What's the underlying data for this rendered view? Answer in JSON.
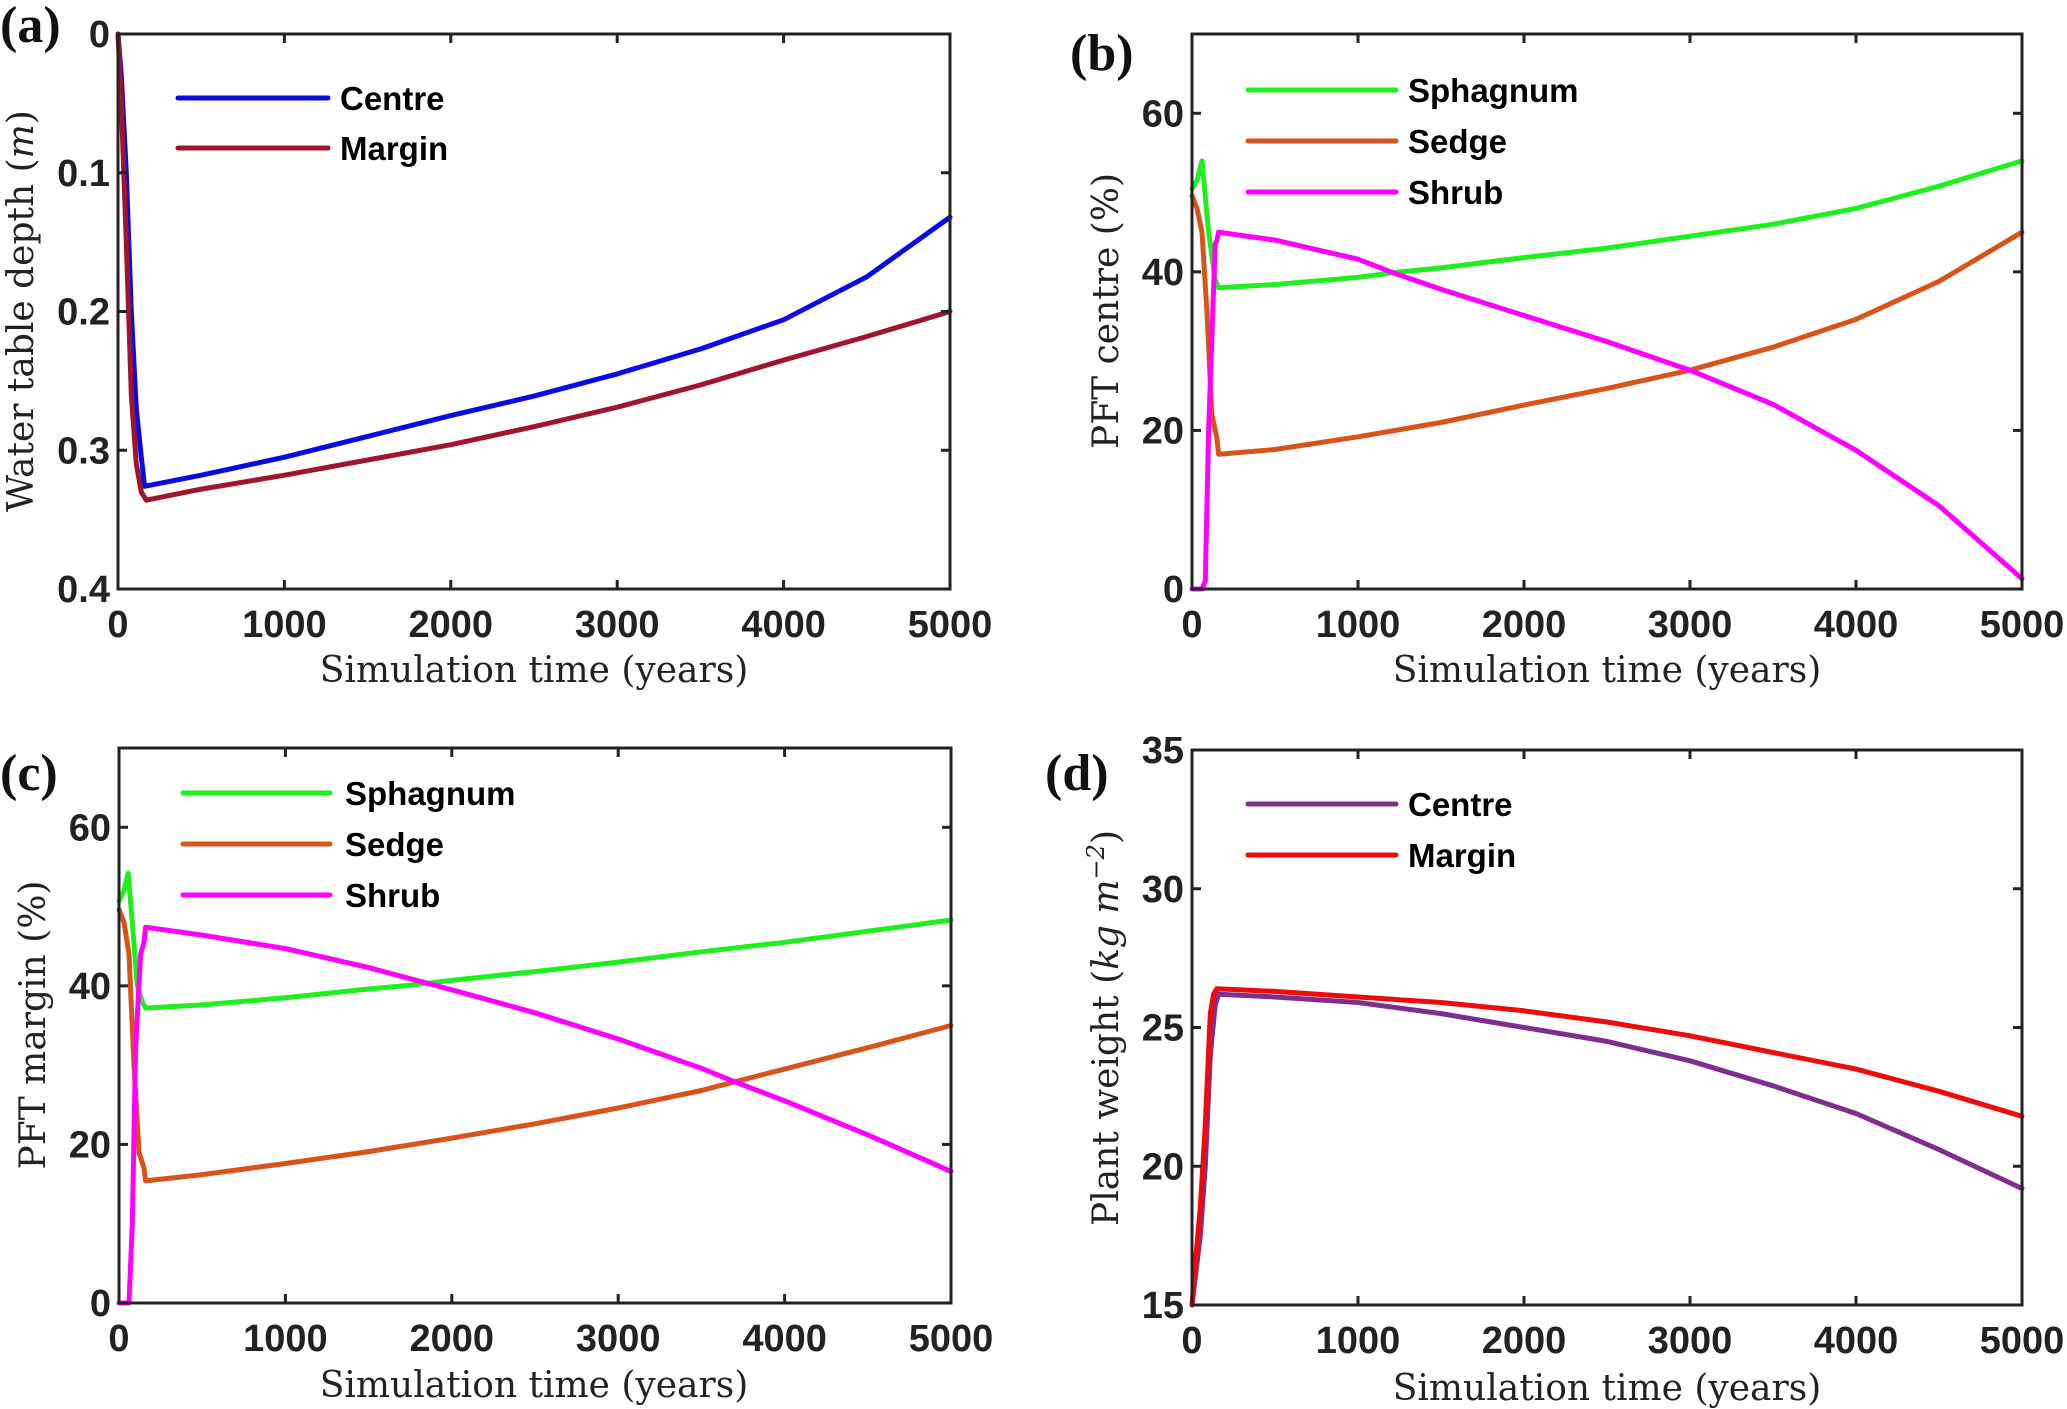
{
  "chart_data": [
    {
      "id": "a",
      "type": "line",
      "panel_label": "(a)",
      "title": "",
      "xlabel": "Simulation time (years)",
      "ylabel": "Water table depth (m)",
      "xlim": [
        0,
        5000
      ],
      "ylim": [
        0,
        0.4
      ],
      "y_reversed": true,
      "xticks": [
        0,
        1000,
        2000,
        3000,
        4000,
        5000
      ],
      "yticks": [
        0,
        0.1,
        0.2,
        0.3,
        0.4
      ],
      "xtick_labels": [
        "0",
        "1000",
        "2000",
        "3000",
        "4000",
        "5000"
      ],
      "ytick_labels": [
        "0",
        "0.1",
        "0.2",
        "0.3",
        "0.4"
      ],
      "legend_position": "top-left",
      "series": [
        {
          "name": "Centre",
          "color": "#0a0ae6",
          "x": [
            0,
            20,
            50,
            80,
            110,
            140,
            160,
            500,
            1000,
            1500,
            2000,
            2500,
            3000,
            3500,
            4000,
            4500,
            5000
          ],
          "y": [
            0,
            0.03,
            0.1,
            0.2,
            0.27,
            0.305,
            0.326,
            0.318,
            0.305,
            0.29,
            0.275,
            0.261,
            0.245,
            0.227,
            0.206,
            0.175,
            0.132
          ]
        },
        {
          "name": "Margin",
          "color": "#a0142d",
          "x": [
            0,
            20,
            50,
            80,
            110,
            140,
            170,
            500,
            1000,
            1500,
            2000,
            2500,
            3000,
            3500,
            4000,
            4500,
            5000
          ],
          "y": [
            0,
            0.05,
            0.15,
            0.26,
            0.31,
            0.33,
            0.336,
            0.328,
            0.318,
            0.307,
            0.296,
            0.283,
            0.269,
            0.253,
            0.235,
            0.218,
            0.2
          ]
        }
      ]
    },
    {
      "id": "b",
      "type": "line",
      "panel_label": "(b)",
      "title": "",
      "xlabel": "Simulation time (years)",
      "ylabel": "PFT centre (%)",
      "xlim": [
        0,
        5000
      ],
      "ylim": [
        0,
        70
      ],
      "y_reversed": false,
      "xticks": [
        0,
        1000,
        2000,
        3000,
        4000,
        5000
      ],
      "yticks": [
        0,
        20,
        40,
        60
      ],
      "xtick_labels": [
        "0",
        "1000",
        "2000",
        "3000",
        "4000",
        "5000"
      ],
      "ytick_labels": [
        "0",
        "20",
        "40",
        "60"
      ],
      "legend_position": "top-left",
      "series": [
        {
          "name": "Sphagnum",
          "color": "#1ef01e",
          "x": [
            0,
            30,
            60,
            100,
            140,
            160,
            500,
            1000,
            1210,
            1500,
            2000,
            2500,
            3000,
            3500,
            4000,
            4500,
            5000
          ],
          "y": [
            50.5,
            51.5,
            54.0,
            45.0,
            39.0,
            38.0,
            38.4,
            39.3,
            39.9,
            40.5,
            41.8,
            43.0,
            44.5,
            46.0,
            48.0,
            50.8,
            54.0
          ]
        },
        {
          "name": "Sedge",
          "color": "#d95319",
          "x": [
            0,
            30,
            60,
            90,
            120,
            150,
            160,
            500,
            1000,
            1500,
            2000,
            2500,
            3000,
            3500,
            4000,
            4500,
            5000
          ],
          "y": [
            49.6,
            48.0,
            45.0,
            35.0,
            22.0,
            19.0,
            17.0,
            17.6,
            19.2,
            21.0,
            23.2,
            25.3,
            27.6,
            30.5,
            34.0,
            38.8,
            45.0
          ]
        },
        {
          "name": "Shrub",
          "color": "#ff00ff",
          "x": [
            0,
            60,
            80,
            100,
            140,
            150,
            160,
            500,
            1000,
            1210,
            1500,
            2000,
            2500,
            3000,
            3500,
            4000,
            4500,
            5000
          ],
          "y": [
            0,
            0,
            1.0,
            20.0,
            43.5,
            44.0,
            45.0,
            44.0,
            41.6,
            39.9,
            37.8,
            34.5,
            31.2,
            27.6,
            23.3,
            17.5,
            10.5,
            1.3
          ]
        }
      ]
    },
    {
      "id": "c",
      "type": "line",
      "panel_label": "(c)",
      "title": "",
      "xlabel": "Simulation time (years)",
      "ylabel": "PFT margin (%)",
      "xlim": [
        0,
        5000
      ],
      "ylim": [
        0,
        70
      ],
      "y_reversed": false,
      "xticks": [
        0,
        1000,
        2000,
        3000,
        4000,
        5000
      ],
      "yticks": [
        0,
        20,
        40,
        60
      ],
      "xtick_labels": [
        "0",
        "1000",
        "2000",
        "3000",
        "4000",
        "5000"
      ],
      "ytick_labels": [
        "0",
        "20",
        "40",
        "60"
      ],
      "legend_position": "top-left",
      "series": [
        {
          "name": "Sphagnum",
          "color": "#1ef01e",
          "x": [
            0,
            30,
            55,
            80,
            110,
            140,
            160,
            500,
            1000,
            1500,
            1750,
            2000,
            2500,
            3000,
            3500,
            4000,
            4500,
            5000
          ],
          "y": [
            50.7,
            52.0,
            54.2,
            48.0,
            40.0,
            38.0,
            37.2,
            37.6,
            38.5,
            39.6,
            40.1,
            40.7,
            41.8,
            43.0,
            44.3,
            45.5,
            46.9,
            48.3
          ]
        },
        {
          "name": "Sedge",
          "color": "#d95319",
          "x": [
            0,
            30,
            60,
            90,
            120,
            150,
            160,
            500,
            1000,
            1500,
            2000,
            2500,
            3000,
            3500,
            3700,
            4000,
            4500,
            5000
          ],
          "y": [
            49.6,
            48.0,
            44.0,
            30.0,
            19.0,
            17.0,
            15.4,
            16.2,
            17.6,
            19.1,
            20.8,
            22.6,
            24.6,
            26.8,
            27.9,
            29.5,
            32.2,
            35.0
          ]
        },
        {
          "name": "Shrub",
          "color": "#ff00ff",
          "x": [
            0,
            60,
            80,
            100,
            130,
            150,
            160,
            500,
            1000,
            1500,
            1750,
            2000,
            2500,
            3000,
            3500,
            3700,
            4000,
            4500,
            5000
          ],
          "y": [
            0,
            0,
            10.0,
            32.0,
            44.0,
            45.5,
            47.4,
            46.4,
            44.7,
            42.3,
            40.9,
            39.5,
            36.6,
            33.3,
            29.6,
            27.9,
            25.5,
            21.2,
            16.6
          ]
        }
      ]
    },
    {
      "id": "d",
      "type": "line",
      "panel_label": "(d)",
      "title": "",
      "xlabel": "Simulation time (years)",
      "ylabel": "Plant weight (kg m^-2)",
      "xlim": [
        0,
        5000
      ],
      "ylim": [
        15,
        35
      ],
      "y_reversed": false,
      "xticks": [
        0,
        1000,
        2000,
        3000,
        4000,
        5000
      ],
      "yticks": [
        15,
        20,
        25,
        30,
        35
      ],
      "xtick_labels": [
        "0",
        "1000",
        "2000",
        "3000",
        "4000",
        "5000"
      ],
      "ytick_labels": [
        "15",
        "20",
        "25",
        "30",
        "35"
      ],
      "legend_position": "top-left",
      "series": [
        {
          "name": "Centre",
          "color": "#7e2f8e",
          "x": [
            0,
            20,
            50,
            80,
            110,
            140,
            160,
            500,
            1000,
            1500,
            2000,
            2500,
            3000,
            3500,
            4000,
            4500,
            5000
          ],
          "y": [
            15.0,
            16.0,
            17.5,
            20.0,
            24.0,
            25.8,
            26.2,
            26.1,
            25.9,
            25.5,
            25.0,
            24.5,
            23.8,
            22.9,
            21.9,
            20.6,
            19.2
          ]
        },
        {
          "name": "Margin",
          "color": "#f00a0a",
          "x": [
            0,
            20,
            50,
            80,
            110,
            130,
            150,
            500,
            1000,
            1500,
            2000,
            2500,
            3000,
            3500,
            4000,
            4500,
            5000
          ],
          "y": [
            15.0,
            16.5,
            18.5,
            21.5,
            25.5,
            26.2,
            26.4,
            26.3,
            26.1,
            25.9,
            25.6,
            25.2,
            24.7,
            24.1,
            23.5,
            22.7,
            21.8
          ]
        }
      ]
    }
  ]
}
